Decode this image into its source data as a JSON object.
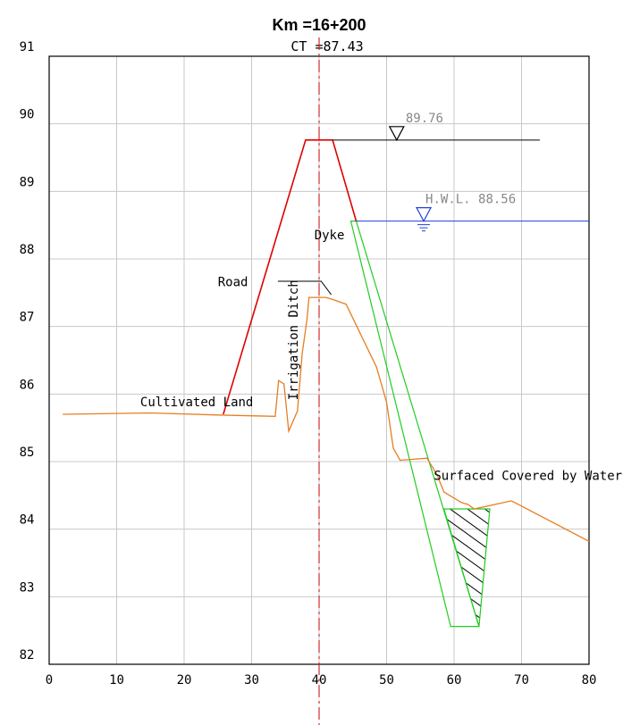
{
  "title": "Km =16+200",
  "subtitle": "CT =87.43",
  "colors": {
    "grid": "#c8c8c8",
    "frame": "#000000",
    "ground": "#e67e22",
    "dyke": "#e00000",
    "excavation": "#22cc22",
    "hwl": "#1f3fd6",
    "centerline": "#d01818",
    "crest_line": "#000000",
    "label": "#000000",
    "muted": "#888888"
  },
  "chart_data": {
    "type": "cross-section",
    "x_ticks": [
      0,
      10,
      20,
      30,
      40,
      50,
      60,
      70,
      80
    ],
    "y_ticks": [
      82,
      83,
      84,
      85,
      86,
      87,
      88,
      89,
      90,
      91
    ],
    "xlim": [
      0,
      80
    ],
    "ylim": [
      82,
      91
    ],
    "centerline_x": 40,
    "ground_profile": [
      [
        2,
        85.7
      ],
      [
        15,
        85.72
      ],
      [
        25,
        85.69
      ],
      [
        33.5,
        85.67
      ],
      [
        34,
        86.2
      ],
      [
        34.8,
        86.15
      ],
      [
        35.5,
        85.45
      ],
      [
        36.8,
        85.75
      ],
      [
        37.5,
        86.6
      ],
      [
        38.2,
        87.1
      ],
      [
        38.5,
        87.43
      ],
      [
        41,
        87.43
      ],
      [
        42,
        87.4
      ],
      [
        44,
        87.33
      ],
      [
        48.5,
        86.4
      ],
      [
        50,
        85.88
      ],
      [
        51,
        85.2
      ],
      [
        52,
        85.02
      ],
      [
        56,
        85.05
      ],
      [
        57.5,
        84.8
      ],
      [
        58.5,
        84.55
      ],
      [
        61,
        84.4
      ],
      [
        61.5,
        84.38
      ],
      [
        62,
        84.37
      ],
      [
        63,
        84.3
      ],
      [
        68.5,
        84.42
      ],
      [
        80,
        83.82
      ]
    ],
    "dyke_profile": [
      [
        25.8,
        85.7
      ],
      [
        38,
        89.76
      ],
      [
        42,
        89.76
      ],
      [
        45.5,
        88.56
      ]
    ],
    "excavation_profile": [
      [
        44.7,
        88.56
      ],
      [
        59.5,
        82.56
      ],
      [
        63.7,
        82.56
      ],
      [
        45.5,
        88.56
      ]
    ],
    "riprap_profile": [
      [
        58.5,
        84.3
      ],
      [
        63.7,
        82.56
      ],
      [
        65.3,
        84.3
      ]
    ],
    "crest_level_line": {
      "x1": 42,
      "x2": 72.7,
      "y": 89.76
    },
    "hwl_line": {
      "x1": 45.5,
      "x2": 80,
      "y": 88.56
    },
    "road_leader": [
      [
        33.9,
        87.67
      ],
      [
        40.3,
        87.67
      ],
      [
        41.8,
        87.47
      ]
    ],
    "levels": [
      {
        "label": "89.76",
        "x": 51.5,
        "y": 89.76
      },
      {
        "label": "H.W.L. 88.56",
        "x": 55.5,
        "y": 88.56
      }
    ],
    "annotations": [
      {
        "text": "Cultivated Land",
        "x": 13.5,
        "y": 85.82
      },
      {
        "text": "Road",
        "x": 25,
        "y": 87.6
      },
      {
        "text": "Irrigation Ditch",
        "x": 36.8,
        "y": 86.8,
        "rotate": true
      },
      {
        "text": "Dyke",
        "x": 39.3,
        "y": 88.29
      },
      {
        "text": "Surfaced Covered by Water",
        "x": 57,
        "y": 84.73
      }
    ]
  }
}
